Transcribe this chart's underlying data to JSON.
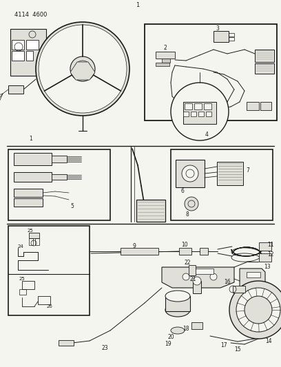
{
  "bg_color": "#f5f5f0",
  "line_color": "#1a1a1a",
  "part_num": "4114  4600",
  "page_num": "1",
  "gray_fill": "#c8c8c0",
  "light_gray": "#e0e0d8",
  "dark_gray": "#909088"
}
